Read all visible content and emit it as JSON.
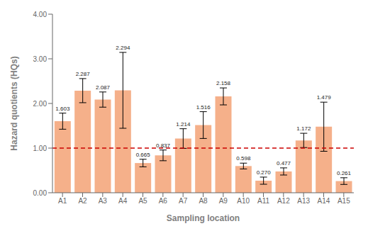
{
  "chart_data": {
    "type": "bar",
    "categories": [
      "A1",
      "A2",
      "A3",
      "A4",
      "A5",
      "A6",
      "A7",
      "A8",
      "A9",
      "A10",
      "A11",
      "A12",
      "A13",
      "A14",
      "A15"
    ],
    "values": [
      1.603,
      2.287,
      2.087,
      2.294,
      0.665,
      0.837,
      1.214,
      1.516,
      2.158,
      0.598,
      0.27,
      0.477,
      1.172,
      1.479,
      0.261
    ],
    "value_labels": [
      "1.603",
      "2.287",
      "2.087",
      "2.294",
      "0.665",
      "0.837",
      "1.214",
      "1.516",
      "2.158",
      "0.598",
      "0.270",
      "0.477",
      "1.172",
      "1.479",
      "0.261"
    ],
    "errors": [
      0.18,
      0.27,
      0.17,
      0.85,
      0.085,
      0.12,
      0.22,
      0.3,
      0.19,
      0.065,
      0.08,
      0.08,
      0.16,
      0.55,
      0.075
    ],
    "color": "#F5B08A",
    "xlabel": "Sampling location",
    "ylabel": "Hazard quotients (HQs)",
    "ylim": [
      0.0,
      4.0
    ],
    "yticks": [
      {
        "value": 0,
        "label": "0.00"
      },
      {
        "value": 1,
        "label": "1.00"
      },
      {
        "value": 2,
        "label": "2.00"
      },
      {
        "value": 3,
        "label": "3.00"
      },
      {
        "value": 4,
        "label": "4.00"
      }
    ],
    "data_labels": true,
    "grid": false,
    "reference_line": {
      "y": 1.0,
      "color": "#CC0000",
      "line_style": "dashed"
    }
  }
}
